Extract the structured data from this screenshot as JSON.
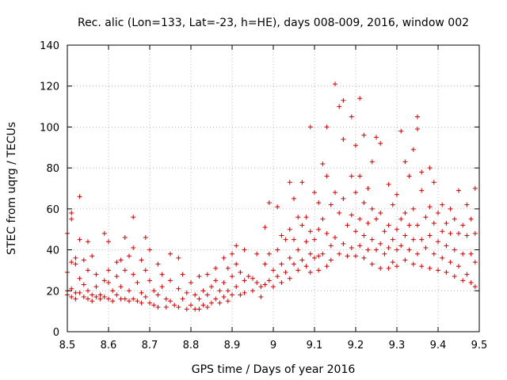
{
  "chart_data": {
    "type": "scatter",
    "title": "Rec. alic (Lon=133, Lat=-23, h=HE), days 008-009, 2016, window 002",
    "xlabel": "GPS time / Days of year 2016",
    "ylabel": "STEC from uqrg / TECUs",
    "xlim": [
      8.5,
      9.5
    ],
    "ylim": [
      0,
      140
    ],
    "xticks": [
      8.5,
      8.6,
      8.7,
      8.8,
      8.9,
      9.0,
      9.1,
      9.2,
      9.3,
      9.4,
      9.5
    ],
    "xtick_labels": [
      "8.5",
      "8.6",
      "8.7",
      "8.8",
      "8.9",
      "9",
      "9.1",
      "9.2",
      "9.3",
      "9.4",
      "9.5"
    ],
    "yticks": [
      0,
      20,
      40,
      60,
      80,
      100,
      120,
      140
    ],
    "ytick_labels": [
      "0",
      "20",
      "40",
      "60",
      "80",
      "100",
      "120",
      "140"
    ],
    "grid": true,
    "marker": "+",
    "color": "#cc0000",
    "series": [
      {
        "name": "STEC",
        "points": [
          [
            8.5,
            29
          ],
          [
            8.5,
            20
          ],
          [
            8.5,
            18
          ],
          [
            8.5,
            48
          ],
          [
            8.51,
            34
          ],
          [
            8.51,
            21
          ],
          [
            8.51,
            17
          ],
          [
            8.51,
            58
          ],
          [
            8.51,
            55
          ],
          [
            8.52,
            33
          ],
          [
            8.52,
            19
          ],
          [
            8.52,
            16
          ],
          [
            8.52,
            36
          ],
          [
            8.53,
            26
          ],
          [
            8.53,
            66
          ],
          [
            8.53,
            45
          ],
          [
            8.53,
            19
          ],
          [
            8.54,
            23
          ],
          [
            8.54,
            17
          ],
          [
            8.54,
            35
          ],
          [
            8.55,
            44
          ],
          [
            8.55,
            30
          ],
          [
            8.55,
            20
          ],
          [
            8.55,
            16
          ],
          [
            8.56,
            37
          ],
          [
            8.56,
            18
          ],
          [
            8.56,
            15
          ],
          [
            8.57,
            22
          ],
          [
            8.57,
            17
          ],
          [
            8.57,
            28
          ],
          [
            8.58,
            18
          ],
          [
            8.58,
            16
          ],
          [
            8.59,
            48
          ],
          [
            8.59,
            25
          ],
          [
            8.59,
            17
          ],
          [
            8.6,
            24
          ],
          [
            8.6,
            44
          ],
          [
            8.6,
            30
          ],
          [
            8.6,
            16
          ],
          [
            8.61,
            20
          ],
          [
            8.61,
            15
          ],
          [
            8.62,
            34
          ],
          [
            8.62,
            27
          ],
          [
            8.62,
            18
          ],
          [
            8.63,
            16
          ],
          [
            8.63,
            22
          ],
          [
            8.63,
            35
          ],
          [
            8.64,
            46
          ],
          [
            8.64,
            30
          ],
          [
            8.64,
            16
          ],
          [
            8.65,
            37
          ],
          [
            8.65,
            20
          ],
          [
            8.65,
            15
          ],
          [
            8.66,
            56
          ],
          [
            8.66,
            41
          ],
          [
            8.66,
            28
          ],
          [
            8.66,
            16
          ],
          [
            8.67,
            24
          ],
          [
            8.67,
            15
          ],
          [
            8.68,
            35
          ],
          [
            8.68,
            19
          ],
          [
            8.68,
            14
          ],
          [
            8.69,
            46
          ],
          [
            8.69,
            30
          ],
          [
            8.69,
            17
          ],
          [
            8.7,
            25
          ],
          [
            8.7,
            14
          ],
          [
            8.7,
            40
          ],
          [
            8.71,
            20
          ],
          [
            8.71,
            13
          ],
          [
            8.72,
            33
          ],
          [
            8.72,
            18
          ],
          [
            8.72,
            12
          ],
          [
            8.73,
            28
          ],
          [
            8.73,
            22
          ],
          [
            8.74,
            16
          ],
          [
            8.74,
            12
          ],
          [
            8.75,
            38
          ],
          [
            8.75,
            25
          ],
          [
            8.75,
            15
          ],
          [
            8.76,
            13
          ],
          [
            8.77,
            36
          ],
          [
            8.77,
            21
          ],
          [
            8.77,
            12
          ],
          [
            8.78,
            28
          ],
          [
            8.78,
            16
          ],
          [
            8.79,
            19
          ],
          [
            8.79,
            11
          ],
          [
            8.8,
            24
          ],
          [
            8.8,
            13
          ],
          [
            8.81,
            18
          ],
          [
            8.81,
            11
          ],
          [
            8.82,
            27
          ],
          [
            8.82,
            16
          ],
          [
            8.82,
            11
          ],
          [
            8.83,
            20
          ],
          [
            8.83,
            13
          ],
          [
            8.84,
            28
          ],
          [
            8.84,
            18
          ],
          [
            8.84,
            12
          ],
          [
            8.85,
            22
          ],
          [
            8.85,
            14
          ],
          [
            8.86,
            31
          ],
          [
            8.86,
            25
          ],
          [
            8.86,
            16
          ],
          [
            8.87,
            20
          ],
          [
            8.87,
            14
          ],
          [
            8.88,
            36
          ],
          [
            8.88,
            24
          ],
          [
            8.88,
            17
          ],
          [
            8.89,
            31
          ],
          [
            8.89,
            20
          ],
          [
            8.89,
            15
          ],
          [
            8.9,
            38
          ],
          [
            8.9,
            27
          ],
          [
            8.9,
            18
          ],
          [
            8.91,
            42
          ],
          [
            8.91,
            33
          ],
          [
            8.91,
            22
          ],
          [
            8.92,
            29
          ],
          [
            8.92,
            18
          ],
          [
            8.93,
            40
          ],
          [
            8.93,
            25
          ],
          [
            8.93,
            19
          ],
          [
            8.94,
            27
          ],
          [
            8.95,
            26
          ],
          [
            8.95,
            20
          ],
          [
            8.96,
            38
          ],
          [
            8.96,
            24
          ],
          [
            8.97,
            22
          ],
          [
            8.97,
            17
          ],
          [
            8.98,
            51
          ],
          [
            8.98,
            33
          ],
          [
            8.98,
            23
          ],
          [
            8.99,
            63
          ],
          [
            8.99,
            38
          ],
          [
            8.99,
            25
          ],
          [
            9.0,
            30
          ],
          [
            9.0,
            22
          ],
          [
            9.01,
            61
          ],
          [
            9.01,
            40
          ],
          [
            9.01,
            27
          ],
          [
            9.02,
            47
          ],
          [
            9.02,
            33
          ],
          [
            9.02,
            24
          ],
          [
            9.03,
            45
          ],
          [
            9.03,
            29
          ],
          [
            9.04,
            73
          ],
          [
            9.04,
            50
          ],
          [
            9.04,
            36
          ],
          [
            9.04,
            26
          ],
          [
            9.05,
            65
          ],
          [
            9.05,
            45
          ],
          [
            9.05,
            33
          ],
          [
            9.06,
            56
          ],
          [
            9.06,
            40
          ],
          [
            9.06,
            30
          ],
          [
            9.07,
            73
          ],
          [
            9.07,
            52
          ],
          [
            9.07,
            35
          ],
          [
            9.08,
            56
          ],
          [
            9.08,
            44
          ],
          [
            9.08,
            32
          ],
          [
            9.09,
            100
          ],
          [
            9.09,
            49
          ],
          [
            9.09,
            38
          ],
          [
            9.09,
            29
          ],
          [
            9.1,
            68
          ],
          [
            9.1,
            45
          ],
          [
            9.1,
            36
          ],
          [
            9.11,
            63
          ],
          [
            9.11,
            50
          ],
          [
            9.11,
            37
          ],
          [
            9.11,
            30
          ],
          [
            9.12,
            82
          ],
          [
            9.12,
            55
          ],
          [
            9.12,
            38
          ],
          [
            9.13,
            76
          ],
          [
            9.13,
            100
          ],
          [
            9.13,
            48
          ],
          [
            9.13,
            32
          ],
          [
            9.14,
            62
          ],
          [
            9.14,
            42
          ],
          [
            9.14,
            35
          ],
          [
            9.15,
            121
          ],
          [
            9.15,
            68
          ],
          [
            9.15,
            46
          ],
          [
            9.16,
            110
          ],
          [
            9.16,
            58
          ],
          [
            9.16,
            38
          ],
          [
            9.17,
            94
          ],
          [
            9.17,
            113
          ],
          [
            9.17,
            65
          ],
          [
            9.17,
            43
          ],
          [
            9.18,
            52
          ],
          [
            9.18,
            37
          ],
          [
            9.19,
            105
          ],
          [
            9.19,
            76
          ],
          [
            9.19,
            57
          ],
          [
            9.19,
            41
          ],
          [
            9.2,
            91
          ],
          [
            9.2,
            68
          ],
          [
            9.2,
            49
          ],
          [
            9.2,
            37
          ],
          [
            9.21,
            114
          ],
          [
            9.21,
            76
          ],
          [
            9.21,
            55
          ],
          [
            9.21,
            42
          ],
          [
            9.22,
            96
          ],
          [
            9.22,
            63
          ],
          [
            9.22,
            47
          ],
          [
            9.22,
            36
          ],
          [
            9.23,
            70
          ],
          [
            9.23,
            53
          ],
          [
            9.23,
            40
          ],
          [
            9.24,
            83
          ],
          [
            9.24,
            60
          ],
          [
            9.24,
            45
          ],
          [
            9.24,
            33
          ],
          [
            9.25,
            95
          ],
          [
            9.25,
            55
          ],
          [
            9.25,
            40
          ],
          [
            9.26,
            92
          ],
          [
            9.26,
            58
          ],
          [
            9.26,
            43
          ],
          [
            9.26,
            31
          ],
          [
            9.27,
            49
          ],
          [
            9.27,
            38
          ],
          [
            9.28,
            72
          ],
          [
            9.28,
            52
          ],
          [
            9.28,
            41
          ],
          [
            9.28,
            31
          ],
          [
            9.29,
            62
          ],
          [
            9.29,
            45
          ],
          [
            9.29,
            34
          ],
          [
            9.3,
            67
          ],
          [
            9.3,
            50
          ],
          [
            9.3,
            40
          ],
          [
            9.3,
            32
          ],
          [
            9.31,
            98
          ],
          [
            9.31,
            55
          ],
          [
            9.31,
            42
          ],
          [
            9.32,
            83
          ],
          [
            9.32,
            58
          ],
          [
            9.32,
            47
          ],
          [
            9.32,
            35
          ],
          [
            9.33,
            76
          ],
          [
            9.33,
            52
          ],
          [
            9.33,
            40
          ],
          [
            9.34,
            89
          ],
          [
            9.34,
            60
          ],
          [
            9.34,
            45
          ],
          [
            9.34,
            33
          ],
          [
            9.35,
            105
          ],
          [
            9.35,
            99
          ],
          [
            9.35,
            52
          ],
          [
            9.35,
            38
          ],
          [
            9.36,
            78
          ],
          [
            9.36,
            69
          ],
          [
            9.36,
            45
          ],
          [
            9.36,
            32
          ],
          [
            9.37,
            56
          ],
          [
            9.37,
            41
          ],
          [
            9.38,
            80
          ],
          [
            9.38,
            61
          ],
          [
            9.38,
            47
          ],
          [
            9.38,
            31
          ],
          [
            9.39,
            73
          ],
          [
            9.39,
            53
          ],
          [
            9.39,
            38
          ],
          [
            9.4,
            58
          ],
          [
            9.4,
            44
          ],
          [
            9.4,
            30
          ],
          [
            9.41,
            62
          ],
          [
            9.41,
            49
          ],
          [
            9.41,
            36
          ],
          [
            9.42,
            53
          ],
          [
            9.42,
            42
          ],
          [
            9.42,
            29
          ],
          [
            9.43,
            60
          ],
          [
            9.43,
            48
          ],
          [
            9.43,
            34
          ],
          [
            9.44,
            55
          ],
          [
            9.44,
            40
          ],
          [
            9.44,
            27
          ],
          [
            9.45,
            69
          ],
          [
            9.45,
            48
          ],
          [
            9.45,
            32
          ],
          [
            9.46,
            52
          ],
          [
            9.46,
            38
          ],
          [
            9.46,
            25
          ],
          [
            9.47,
            62
          ],
          [
            9.47,
            47
          ],
          [
            9.47,
            28
          ],
          [
            9.48,
            55
          ],
          [
            9.48,
            38
          ],
          [
            9.48,
            24
          ],
          [
            9.49,
            70
          ],
          [
            9.49,
            48
          ],
          [
            9.49,
            34
          ],
          [
            9.49,
            22
          ]
        ]
      }
    ]
  }
}
